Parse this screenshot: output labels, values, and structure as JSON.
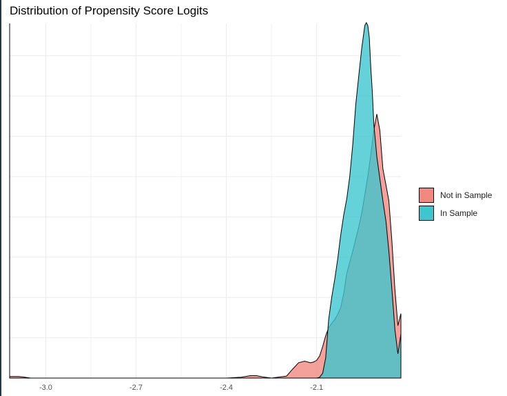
{
  "chart_data": {
    "type": "area",
    "title": "Distribution of Propensity Score Logits",
    "xlabel": "",
    "ylabel": "",
    "xlim": [
      -3.12,
      -1.82
    ],
    "ylim": [
      0,
      8.8
    ],
    "x_ticks": [
      -3.0,
      -2.7,
      -2.4,
      -2.1
    ],
    "x_tick_labels": [
      "-3.0",
      "-2.7",
      "-2.4",
      "-2.1"
    ],
    "y_gridlines": [
      1,
      2,
      3,
      4,
      5,
      6,
      7,
      8
    ],
    "grid": true,
    "legend_position": "right",
    "series": [
      {
        "name": "Not in Sample",
        "color": "#f08a81",
        "x": [
          -3.12,
          -3.09,
          -3.07,
          -3.05,
          -3.0,
          -2.9,
          -2.7,
          -2.5,
          -2.4,
          -2.35,
          -2.32,
          -2.3,
          -2.28,
          -2.25,
          -2.2,
          -2.18,
          -2.16,
          -2.14,
          -2.12,
          -2.11,
          -2.1,
          -2.09,
          -2.08,
          -2.07,
          -2.06,
          -2.05,
          -2.04,
          -2.03,
          -2.02,
          -2.01,
          -2.0,
          -1.98,
          -1.96,
          -1.95,
          -1.94,
          -1.93,
          -1.92,
          -1.91,
          -1.9,
          -1.89,
          -1.88,
          -1.87,
          -1.86,
          -1.85,
          -1.84,
          -1.83,
          -1.82
        ],
        "y": [
          0.04,
          0.04,
          0.02,
          0.0,
          0.0,
          0.0,
          0.0,
          0.0,
          0.0,
          0.02,
          0.06,
          0.06,
          0.03,
          0.0,
          0.05,
          0.22,
          0.38,
          0.42,
          0.38,
          0.4,
          0.44,
          0.55,
          0.78,
          1.05,
          1.25,
          1.36,
          1.45,
          1.58,
          1.75,
          2.1,
          2.6,
          3.15,
          3.75,
          4.1,
          4.55,
          5.0,
          5.55,
          6.15,
          6.55,
          6.15,
          5.2,
          4.8,
          4.4,
          3.4,
          2.2,
          1.3,
          1.6
        ]
      },
      {
        "name": "In Sample",
        "color": "#3ec6ce",
        "x": [
          -2.46,
          -2.4,
          -2.3,
          -2.2,
          -2.13,
          -2.1,
          -2.09,
          -2.08,
          -2.07,
          -2.06,
          -2.05,
          -2.04,
          -2.03,
          -2.02,
          -2.01,
          -2.0,
          -1.99,
          -1.98,
          -1.97,
          -1.96,
          -1.95,
          -1.94,
          -1.935,
          -1.93,
          -1.925,
          -1.92,
          -1.915,
          -1.91,
          -1.9,
          -1.89,
          -1.88,
          -1.87,
          -1.86,
          -1.85,
          -1.84,
          -1.83,
          -1.82
        ],
        "y": [
          0.0,
          0.0,
          0.0,
          0.0,
          0.0,
          0.0,
          0.02,
          0.12,
          0.5,
          1.45,
          2.0,
          2.45,
          2.95,
          3.55,
          4.05,
          4.45,
          5.0,
          5.8,
          6.8,
          7.5,
          8.2,
          8.75,
          8.82,
          8.75,
          8.45,
          7.7,
          7.1,
          6.3,
          5.5,
          4.95,
          4.4,
          3.9,
          3.15,
          2.2,
          1.2,
          0.6,
          1.1
        ]
      }
    ]
  },
  "legend": {
    "items": [
      {
        "label": "Not in Sample",
        "color": "#f08a81"
      },
      {
        "label": "In Sample",
        "color": "#3ec6ce"
      }
    ]
  }
}
